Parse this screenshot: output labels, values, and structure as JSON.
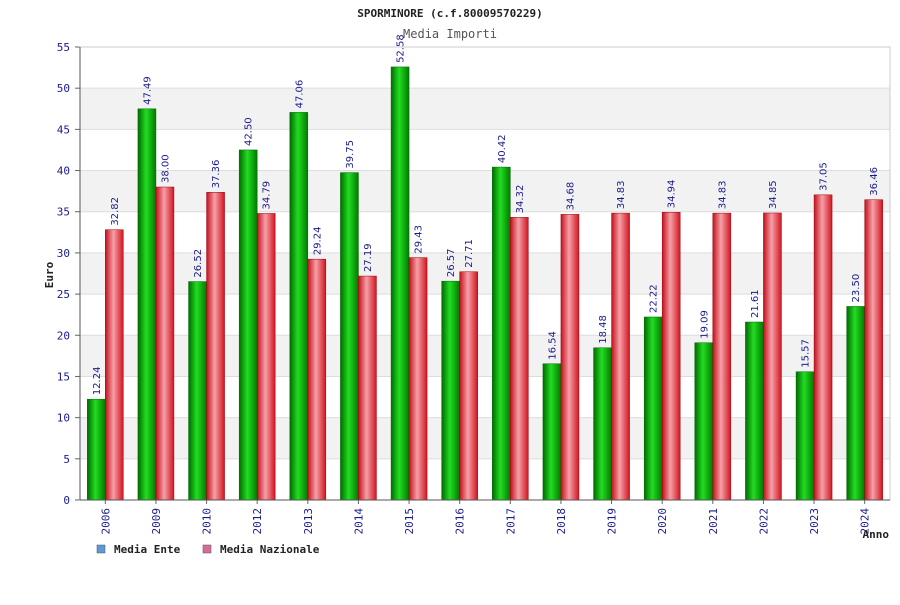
{
  "chart_data": {
    "type": "bar",
    "title": "SPORMINORE (c.f.80009570229)",
    "subtitle": "Media Importi",
    "xlabel": "Anno",
    "ylabel": "Euro",
    "ylim": [
      0,
      55
    ],
    "yticks": [
      0,
      5,
      10,
      15,
      20,
      25,
      30,
      35,
      40,
      45,
      50,
      55
    ],
    "categories": [
      "2006",
      "2009",
      "2010",
      "2012",
      "2013",
      "2014",
      "2015",
      "2016",
      "2017",
      "2018",
      "2019",
      "2020",
      "2021",
      "2022",
      "2023",
      "2024"
    ],
    "series": [
      {
        "name": "Media Ente",
        "color": "#00aa00",
        "legend_color": "#5b9bd5",
        "values": [
          12.24,
          47.49,
          26.52,
          42.5,
          47.06,
          39.75,
          52.58,
          26.57,
          40.42,
          16.54,
          18.48,
          22.22,
          19.09,
          21.61,
          15.57,
          23.5
        ],
        "labels": [
          "12.24",
          "47.49",
          "26.52",
          "42.50",
          "47.06",
          "39.75",
          "52.58",
          "26.57",
          "40.42",
          "16.54",
          "18.48",
          "22.22",
          "19.09",
          "21.61",
          "15.57",
          "23.50"
        ]
      },
      {
        "name": "Media Nazionale",
        "color": "#e8202a",
        "legend_color": "#d86a9a",
        "values": [
          32.82,
          38.0,
          37.36,
          34.79,
          29.24,
          27.19,
          29.43,
          27.71,
          34.32,
          34.68,
          34.83,
          34.94,
          34.83,
          34.85,
          37.05,
          36.46
        ],
        "labels": [
          "32.82",
          "38.00",
          "37.36",
          "34.79",
          "29.24",
          "27.19",
          "29.43",
          "27.71",
          "34.32",
          "34.68",
          "34.83",
          "34.94",
          "34.83",
          "34.85",
          "37.05",
          "36.46"
        ]
      }
    ],
    "grid": true,
    "legend": "bottom-left"
  }
}
